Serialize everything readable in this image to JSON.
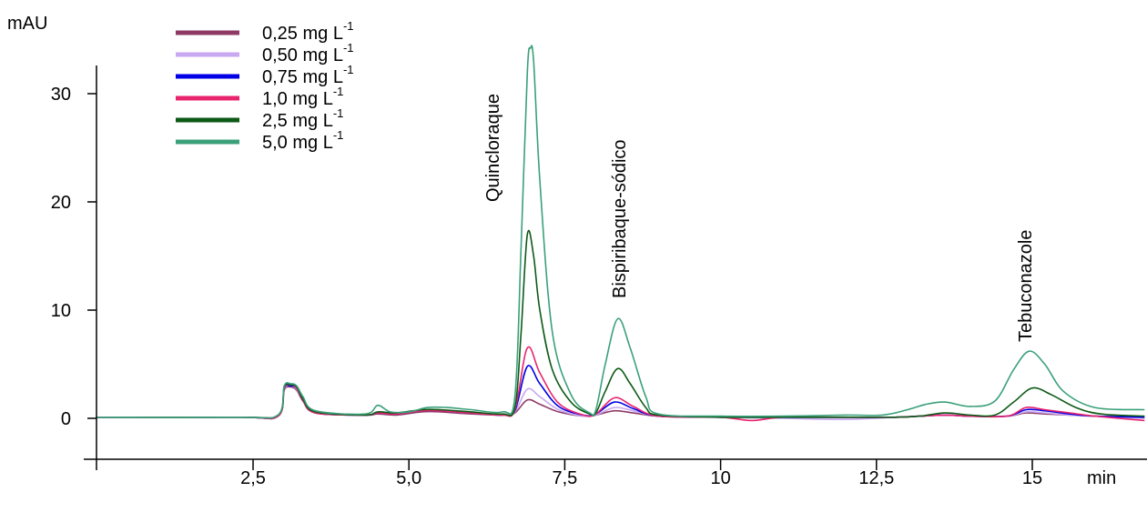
{
  "chart_data": {
    "type": "line",
    "ylabel": "mAU",
    "xlabel": "min",
    "xlim": [
      0,
      16.8
    ],
    "ylim": [
      -4,
      33
    ],
    "x_ticks": [
      "2,5",
      "5,0",
      "7,5",
      "10",
      "12,5",
      "15"
    ],
    "x_tick_values": [
      2.5,
      5.0,
      7.5,
      10,
      12.5,
      15
    ],
    "y_ticks": [
      "0",
      "10",
      "20",
      "30"
    ],
    "y_tick_values": [
      0,
      10,
      20,
      30
    ],
    "legend_position": "top-left",
    "peak_labels": [
      {
        "text": "Quincloraque",
        "x": 6.9
      },
      {
        "text": "Bispiribaque-sódico",
        "x": 8.3
      },
      {
        "text": "Tebuconazole",
        "x": 14.9
      }
    ],
    "series": [
      {
        "name": "0,25 mg L",
        "sup": "-1",
        "color": "#8e3a64",
        "x": [
          0,
          2.3,
          2.9,
          3.0,
          3.1,
          3.2,
          3.3,
          3.5,
          4.3,
          4.5,
          4.8,
          5.2,
          5.5,
          6.0,
          6.5,
          6.7,
          6.9,
          7.1,
          7.4,
          7.8,
          8.0,
          8.3,
          8.6,
          9.0,
          10,
          11,
          12,
          12.8,
          13.2,
          13.6,
          14.0,
          14.6,
          14.9,
          15.2,
          15.6,
          16.0,
          16.8
        ],
        "y": [
          0.1,
          0.1,
          0.2,
          2.6,
          2.9,
          2.6,
          1.6,
          0.5,
          0.3,
          0.4,
          0.3,
          0.6,
          0.6,
          0.4,
          0.3,
          0.5,
          1.7,
          1.3,
          0.6,
          0.2,
          0.3,
          0.7,
          0.5,
          0.2,
          0.1,
          0.1,
          0.1,
          0.1,
          0.2,
          0.3,
          0.2,
          0.2,
          0.5,
          0.4,
          0.3,
          0.2,
          0.1
        ]
      },
      {
        "name": "0,50 mg L",
        "sup": "-1",
        "color": "#c8a8f0",
        "x": [
          0,
          2.3,
          2.9,
          3.0,
          3.1,
          3.2,
          3.3,
          3.5,
          4.3,
          4.5,
          4.8,
          5.2,
          5.5,
          6.0,
          6.5,
          6.7,
          6.9,
          7.1,
          7.4,
          7.8,
          8.0,
          8.3,
          8.6,
          9.0,
          10,
          11,
          12,
          12.8,
          13.2,
          13.6,
          14.0,
          14.6,
          14.9,
          15.2,
          15.6,
          16.0,
          16.8
        ],
        "y": [
          0.1,
          0.1,
          0.2,
          2.7,
          3.0,
          2.7,
          1.7,
          0.5,
          0.3,
          0.5,
          0.4,
          0.7,
          0.7,
          0.5,
          0.3,
          0.6,
          2.7,
          2.0,
          0.8,
          0.2,
          0.3,
          1.0,
          0.7,
          0.2,
          0.1,
          0.0,
          -0.1,
          0.1,
          0.2,
          0.3,
          0.2,
          0.2,
          0.6,
          0.5,
          0.3,
          0.2,
          0.0
        ]
      },
      {
        "name": "0,75 mg L",
        "sup": "-1",
        "color": "#0000e6",
        "x": [
          0,
          2.3,
          2.9,
          3.0,
          3.1,
          3.2,
          3.3,
          3.5,
          4.3,
          4.5,
          4.8,
          5.2,
          5.5,
          6.0,
          6.5,
          6.7,
          6.9,
          7.1,
          7.4,
          7.8,
          8.0,
          8.3,
          8.6,
          9.0,
          10,
          11,
          12,
          12.8,
          13.2,
          13.6,
          14.0,
          14.6,
          14.9,
          15.2,
          15.6,
          16.0,
          16.8
        ],
        "y": [
          0.1,
          0.1,
          0.2,
          2.8,
          3.0,
          2.8,
          1.7,
          0.5,
          0.3,
          0.5,
          0.4,
          0.7,
          0.7,
          0.5,
          0.3,
          0.7,
          4.8,
          3.2,
          1.1,
          0.3,
          0.4,
          1.5,
          0.9,
          0.2,
          0.1,
          0.1,
          0.1,
          0.1,
          0.2,
          0.3,
          0.2,
          0.2,
          0.8,
          0.7,
          0.4,
          0.2,
          0.1
        ]
      },
      {
        "name": "1,0 mg L",
        "sup": "-1",
        "color": "#e8246e",
        "x": [
          0,
          2.3,
          2.9,
          3.0,
          3.1,
          3.2,
          3.3,
          3.5,
          4.3,
          4.5,
          4.8,
          5.2,
          5.5,
          6.0,
          6.5,
          6.7,
          6.9,
          7.1,
          7.4,
          7.8,
          8.0,
          8.3,
          8.6,
          9.0,
          10,
          10.5,
          11,
          12,
          12.8,
          13.2,
          13.6,
          14.0,
          14.6,
          14.9,
          15.2,
          15.6,
          16.0,
          16.8
        ],
        "y": [
          0.1,
          0.1,
          0.2,
          2.8,
          3.1,
          2.8,
          1.7,
          0.5,
          0.3,
          0.5,
          0.4,
          0.7,
          0.7,
          0.5,
          0.3,
          0.8,
          6.5,
          4.2,
          1.4,
          0.3,
          0.4,
          1.9,
          1.1,
          0.2,
          0.1,
          -0.2,
          0.1,
          0.1,
          0.1,
          0.2,
          0.3,
          0.2,
          0.2,
          1.0,
          0.8,
          0.5,
          0.2,
          -0.2
        ]
      },
      {
        "name": "2,5 mg L",
        "sup": "-1",
        "color": "#0d5a16",
        "x": [
          0,
          2.3,
          2.9,
          3.0,
          3.1,
          3.2,
          3.3,
          3.5,
          4.3,
          4.5,
          4.8,
          5.2,
          5.5,
          6.0,
          6.5,
          6.7,
          6.8,
          6.9,
          7.0,
          7.1,
          7.3,
          7.6,
          7.9,
          8.0,
          8.15,
          8.35,
          8.55,
          8.8,
          9.0,
          10,
          11,
          12,
          12.8,
          13.2,
          13.6,
          14.0,
          14.4,
          14.7,
          15.0,
          15.3,
          15.7,
          16.1,
          16.8
        ],
        "y": [
          0.1,
          0.1,
          0.3,
          2.9,
          3.1,
          2.9,
          1.8,
          0.6,
          0.3,
          0.6,
          0.5,
          0.8,
          0.8,
          0.6,
          0.4,
          1.0,
          8.0,
          17.0,
          15.0,
          10.0,
          4.5,
          1.5,
          0.4,
          0.5,
          2.5,
          4.6,
          3.2,
          1.0,
          0.3,
          0.1,
          0.1,
          0.1,
          0.1,
          0.2,
          0.5,
          0.3,
          0.3,
          1.5,
          2.8,
          2.2,
          1.0,
          0.4,
          0.2
        ]
      },
      {
        "name": "5,0 mg L",
        "sup": "-1",
        "color": "#3aa07a",
        "x": [
          0,
          2.3,
          2.9,
          3.0,
          3.1,
          3.2,
          3.3,
          3.5,
          4.3,
          4.5,
          4.7,
          5.0,
          5.3,
          5.6,
          6.0,
          6.5,
          6.7,
          6.8,
          6.9,
          6.95,
          7.0,
          7.1,
          7.3,
          7.6,
          7.9,
          8.0,
          8.15,
          8.35,
          8.55,
          8.8,
          9.0,
          10,
          11,
          12,
          12.6,
          13.0,
          13.3,
          13.6,
          14.0,
          14.4,
          14.7,
          14.95,
          15.2,
          15.5,
          16.0,
          16.8
        ],
        "y": [
          0.1,
          0.1,
          0.3,
          3.0,
          3.2,
          3.0,
          2.0,
          0.7,
          0.4,
          1.2,
          0.6,
          0.6,
          1.0,
          1.0,
          0.8,
          0.6,
          2.0,
          16.0,
          32.0,
          34.2,
          33.0,
          22.0,
          8.0,
          2.2,
          0.5,
          0.8,
          5.0,
          9.2,
          6.5,
          2.0,
          0.4,
          0.2,
          0.2,
          0.3,
          0.3,
          0.8,
          1.3,
          1.5,
          1.1,
          1.6,
          4.5,
          6.2,
          5.0,
          2.5,
          1.0,
          0.8
        ]
      }
    ]
  }
}
